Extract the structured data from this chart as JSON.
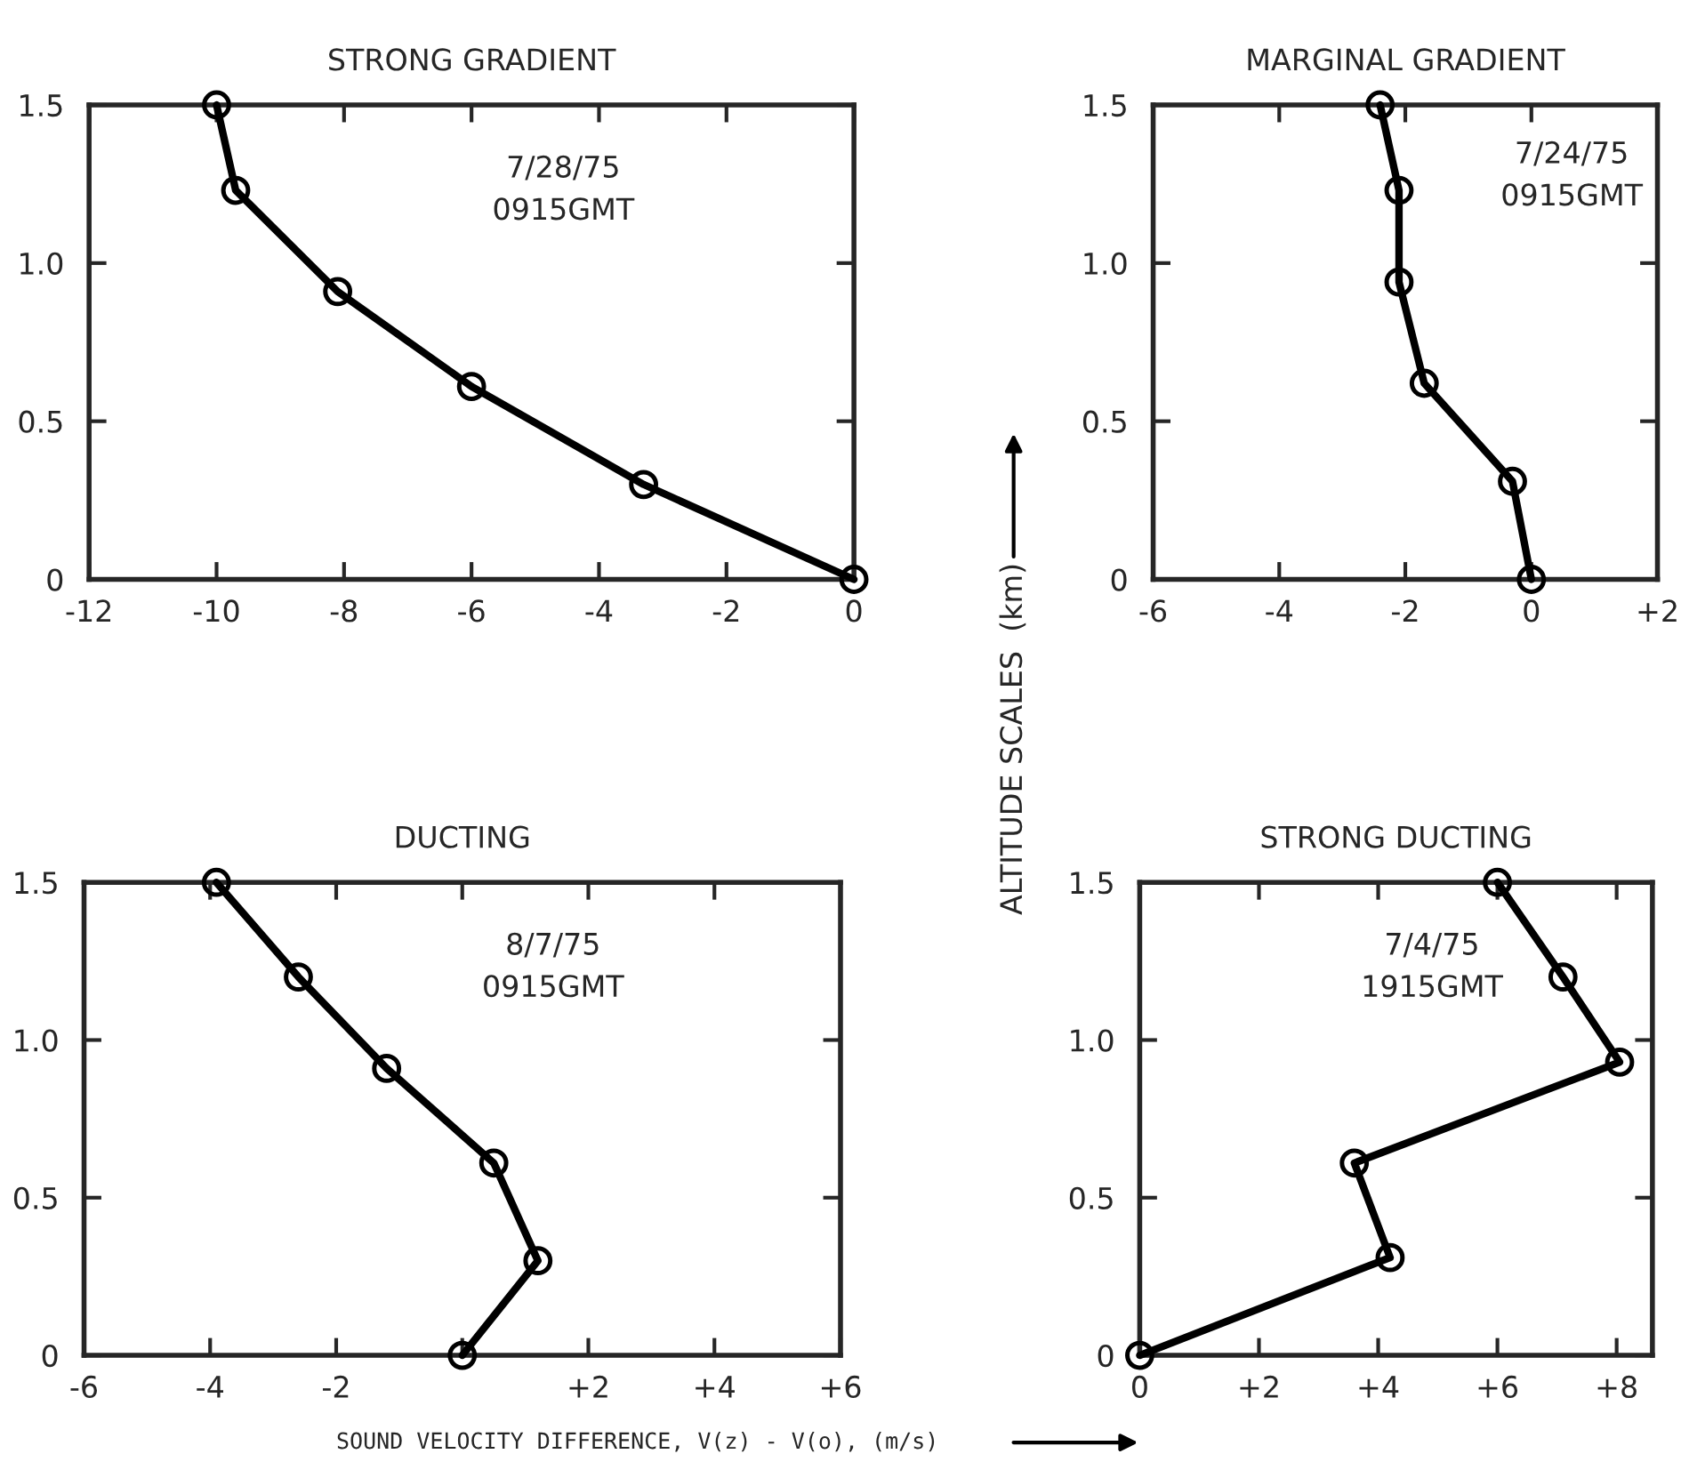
{
  "chart_data": [
    {
      "type": "line",
      "title": "STRONG GRADIENT",
      "x": [
        -10,
        -9.7,
        -8.1,
        -6,
        -3.3,
        0
      ],
      "values": [
        1.5,
        1.23,
        0.91,
        0.61,
        0.3,
        0
      ],
      "color": "#000000",
      "marker": "circle",
      "line_style": "solid",
      "xlim": [
        -12,
        0
      ],
      "ylim": [
        0,
        1.5
      ],
      "xticks": [
        -12,
        -10,
        -8,
        -6,
        -4,
        -2,
        0
      ],
      "yticks": [
        0,
        {
          "value": 0.5,
          "label": "0.5"
        },
        {
          "value": 1.0,
          "label": "1.0"
        },
        {
          "value": 1.5,
          "label": "1.5"
        }
      ],
      "grid": false,
      "annotations": [
        "7/28/75\n0915GMT"
      ]
    },
    {
      "type": "line",
      "title": "MARGINAL GRADIENT",
      "x": [
        -2.4,
        -2.1,
        -2.1,
        -1.7,
        -0.3,
        0
      ],
      "values": [
        1.5,
        1.23,
        0.94,
        0.62,
        0.31,
        0
      ],
      "color": "#000000",
      "marker": "circle",
      "line_style": "solid",
      "xlim": [
        -6,
        2
      ],
      "ylim": [
        0,
        1.5
      ],
      "xticks": [
        -6,
        -4,
        -2,
        0,
        {
          "value": 2,
          "label": "+2"
        }
      ],
      "yticks": [
        0,
        {
          "value": 0.5,
          "label": "0.5"
        },
        {
          "value": 1.0,
          "label": "1.0"
        },
        {
          "value": 1.5,
          "label": "1.5"
        }
      ],
      "grid": false,
      "ylabel": "ALTITUDE SCALES  (km)",
      "annotations": [
        "7/24/75\n0915GMT"
      ]
    },
    {
      "type": "line",
      "title": "DUCTING",
      "x": [
        -3.9,
        -2.6,
        -1.2,
        0.5,
        1.2,
        0
      ],
      "values": [
        1.5,
        1.2,
        0.91,
        0.61,
        0.3,
        0
      ],
      "color": "#000000",
      "marker": "circle",
      "line_style": "solid",
      "xlim": [
        -6,
        6
      ],
      "ylim": [
        0,
        1.5
      ],
      "xticks": [
        -6,
        -4,
        -2,
        {
          "value": 0,
          "label": null
        },
        {
          "value": 2,
          "label": "+2"
        },
        {
          "value": 4,
          "label": "+4"
        },
        {
          "value": 6,
          "label": "+6"
        }
      ],
      "yticks": [
        0,
        {
          "value": 0.5,
          "label": "0.5"
        },
        {
          "value": 1.0,
          "label": "1.0"
        },
        {
          "value": 1.5,
          "label": "1.5"
        }
      ],
      "grid": false,
      "xlabel": "SOUND VELOCITY DIFFERENCE, V(z) - V(o), (m/s)",
      "annotations": [
        "8/7/75\n0915GMT"
      ]
    },
    {
      "type": "line",
      "title": "STRONG DUCTING",
      "x": [
        6,
        7.1,
        8.05,
        3.6,
        4.2,
        0
      ],
      "values": [
        1.5,
        1.2,
        0.93,
        0.61,
        0.31,
        0
      ],
      "color": "#000000",
      "marker": "circle",
      "line_style": "solid",
      "xlim": [
        0,
        8.6
      ],
      "ylim": [
        0,
        1.5
      ],
      "xticks": [
        0,
        {
          "value": 2,
          "label": "+2"
        },
        {
          "value": 4,
          "label": "+4"
        },
        {
          "value": 6,
          "label": "+6"
        },
        {
          "value": 8,
          "label": "+8"
        }
      ],
      "yticks": [
        0,
        {
          "value": 0.5,
          "label": "0.5"
        },
        {
          "value": 1.0,
          "label": "1.0"
        },
        {
          "value": 1.5,
          "label": "1.5"
        }
      ],
      "grid": false,
      "annotations": [
        "7/4/75\n1915GMT"
      ]
    }
  ]
}
